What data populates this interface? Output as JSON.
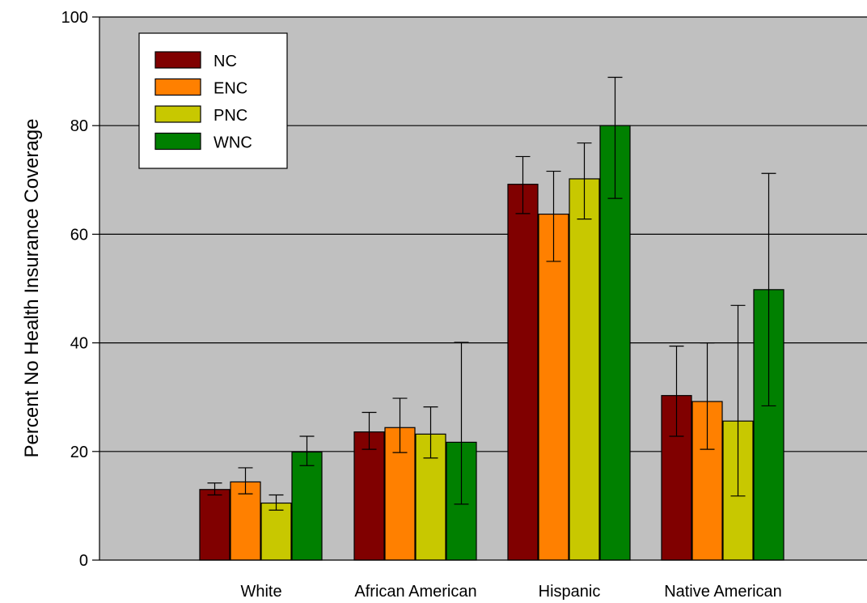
{
  "chart_data": {
    "type": "bar",
    "title": "",
    "xlabel": "",
    "ylabel": "Percent No Health Insurance Coverage",
    "ylim": [
      0,
      100
    ],
    "yticks": [
      0,
      20,
      40,
      60,
      80,
      100
    ],
    "grid": true,
    "legend_position": "top-left",
    "categories": [
      "White",
      "African American",
      "Hispanic",
      "Native American"
    ],
    "series": [
      {
        "name": "NC",
        "color": "#800000",
        "values": [
          13.0,
          23.6,
          69.2,
          30.3
        ],
        "err_low": [
          12.0,
          20.4,
          63.8,
          22.8
        ],
        "err_high": [
          14.2,
          27.2,
          74.3,
          39.4
        ]
      },
      {
        "name": "ENC",
        "color": "#ff8000",
        "values": [
          14.4,
          24.4,
          63.7,
          29.2
        ],
        "err_low": [
          12.2,
          19.8,
          55.0,
          20.4
        ],
        "err_high": [
          17.0,
          29.8,
          71.6,
          40.0
        ]
      },
      {
        "name": "PNC",
        "color": "#c8c800",
        "values": [
          10.5,
          23.2,
          70.2,
          25.6
        ],
        "err_low": [
          9.2,
          18.8,
          62.8,
          11.8
        ],
        "err_high": [
          12.0,
          28.2,
          76.8,
          46.9
        ]
      },
      {
        "name": "WNC",
        "color": "#008000",
        "values": [
          19.9,
          21.7,
          80.0,
          49.8
        ],
        "err_low": [
          17.4,
          10.3,
          66.6,
          28.4
        ],
        "err_high": [
          22.8,
          40.1,
          88.9,
          71.2
        ]
      }
    ],
    "colors": {
      "plot_background": "#c0c0c0",
      "grid": "#000000"
    }
  }
}
